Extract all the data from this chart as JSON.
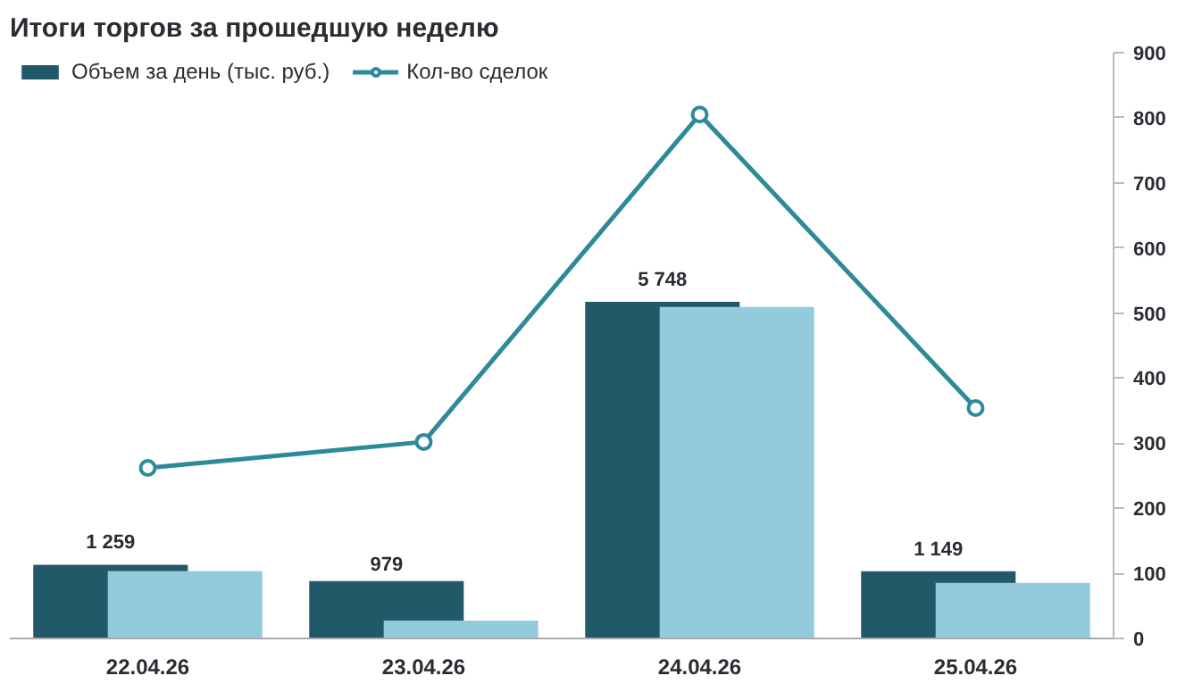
{
  "chart_data": {
    "type": "bar",
    "title": "Итоги торгов за прошедшую неделю",
    "categories": [
      "22.04.26",
      "23.04.26",
      "24.04.26",
      "25.04.26"
    ],
    "ylim": [
      0,
      10000
    ],
    "y2lim": [
      0,
      900
    ],
    "y2ticks": [
      0,
      100,
      200,
      300,
      400,
      500,
      600,
      700,
      800,
      900
    ],
    "series": [
      {
        "name": "Объем за день (тыс. руб.)",
        "color": "#215968",
        "values": [
          1259,
          979,
          5748,
          1149
        ],
        "value_labels": [
          "1 259",
          "979",
          "5 748",
          "1 149"
        ]
      },
      {
        "color": "#93cbdc",
        "values": [
          1150,
          305,
          5660,
          950
        ]
      },
      {
        "name": "Кол-во сделок",
        "type": "line",
        "axis": "y2",
        "color": "#2e8a9a",
        "marker": "circle",
        "values": [
          262,
          302,
          805,
          354
        ]
      }
    ],
    "grid": false,
    "legend": "top left"
  }
}
